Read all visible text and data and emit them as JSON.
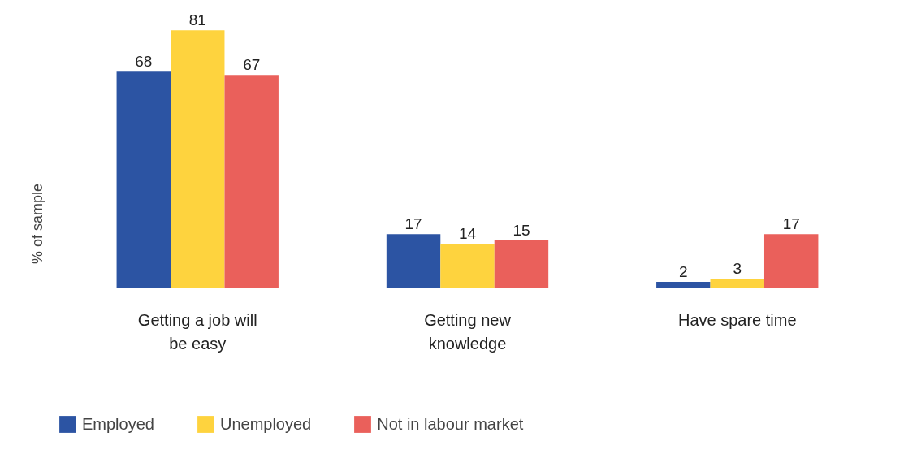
{
  "chart_data": {
    "type": "bar",
    "ylabel": "% of sample",
    "categories": [
      "Getting a job will be easy",
      "Getting new knowledge",
      "Have spare time"
    ],
    "series": [
      {
        "name": "Employed",
        "color": "#2c54a3",
        "values": [
          68,
          17,
          2
        ]
      },
      {
        "name": "Unemployed",
        "color": "#fed33e",
        "values": [
          81,
          14,
          3
        ]
      },
      {
        "name": "Not in labour market",
        "color": "#ea605b",
        "values": [
          67,
          15,
          17
        ]
      }
    ],
    "data_labels": true,
    "legend": "bottom",
    "grid": false
  }
}
